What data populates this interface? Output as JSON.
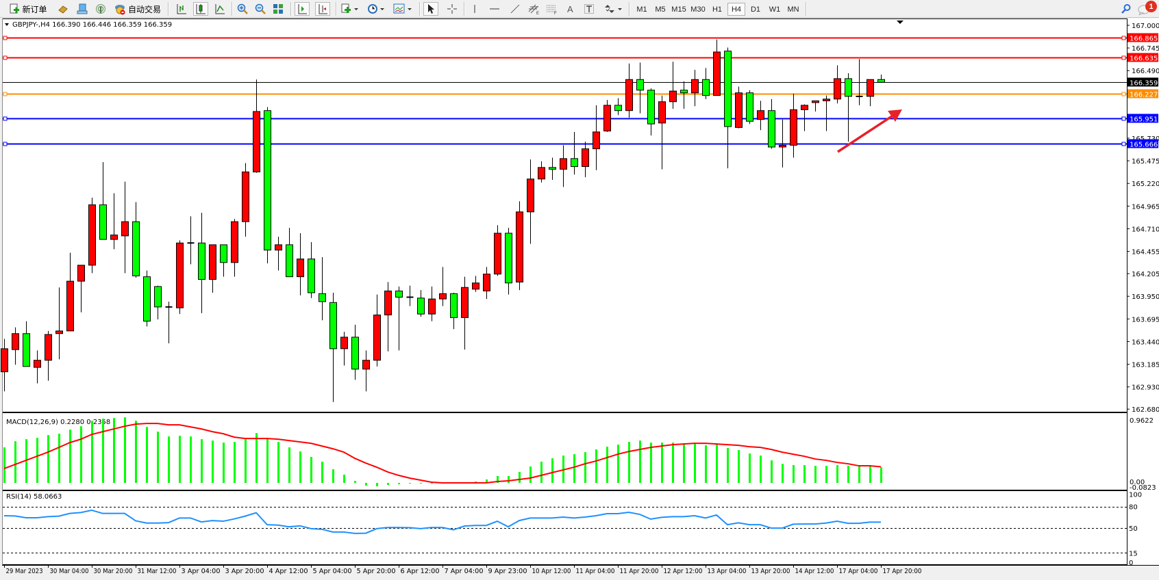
{
  "toolbar": {
    "new_order_label": "新订单",
    "auto_trading_label": "自动交易",
    "timeframes": [
      "M1",
      "M5",
      "M15",
      "M30",
      "H1",
      "H4",
      "D1",
      "W1",
      "MN"
    ],
    "selected_timeframe": "H4",
    "notification_count": "1"
  },
  "chart_header": "GBPJPY-,H4  166.390 166.446 166.359 166.359",
  "macd_label": "MACD(12,26,9) 0.2280 0.2358",
  "rsi_label": "RSI(14) 58.0663",
  "colors": {
    "bull": "#ff0000",
    "bear": "#00ff00",
    "macd_hist": "#00ff00",
    "macd_signal": "#ff0000",
    "rsi": "#1e90ff",
    "bid": "#000000"
  },
  "chart_data": {
    "type": "candlestick",
    "symbol": "GBPJPY-",
    "timeframe": "H4",
    "ylim": [
      162.68,
      167.0
    ],
    "price_ticks": [
      "167.000",
      "166.745",
      "166.490",
      "165.730",
      "165.475",
      "165.220",
      "164.965",
      "164.710",
      "164.455",
      "164.205",
      "163.950",
      "163.695",
      "163.440",
      "163.185",
      "162.930",
      "162.680"
    ],
    "time_labels": [
      "29 Mar 2023",
      "30 Mar 04:00",
      "30 Mar 20:00",
      "31 Mar 12:00",
      "3 Apr 04:00",
      "3 Apr 20:00",
      "4 Apr 12:00",
      "5 Apr 04:00",
      "5 Apr 20:00",
      "6 Apr 12:00",
      "7 Apr 04:00",
      "9 Apr 23:00",
      "10 Apr 12:00",
      "11 Apr 04:00",
      "11 Apr 20:00",
      "12 Apr 12:00",
      "13 Apr 04:00",
      "13 Apr 20:00",
      "14 Apr 12:00",
      "17 Apr 04:00",
      "17 Apr 20:00"
    ],
    "ohlc": [
      [
        163.1,
        163.47,
        162.88,
        163.36
      ],
      [
        163.35,
        163.6,
        163.18,
        163.53
      ],
      [
        163.53,
        163.67,
        163.16,
        163.16
      ],
      [
        163.15,
        163.34,
        162.97,
        163.23
      ],
      [
        163.23,
        163.56,
        163.0,
        163.52
      ],
      [
        163.53,
        164.05,
        163.24,
        163.56
      ],
      [
        163.56,
        164.44,
        163.56,
        164.12
      ],
      [
        164.12,
        164.3,
        163.77,
        164.3
      ],
      [
        164.3,
        165.06,
        164.21,
        164.98
      ],
      [
        164.98,
        165.46,
        164.59,
        164.59
      ],
      [
        164.59,
        165.11,
        164.48,
        164.64
      ],
      [
        164.63,
        165.24,
        164.21,
        164.79
      ],
      [
        164.79,
        165.01,
        164.16,
        164.18
      ],
      [
        164.17,
        164.24,
        163.61,
        163.67
      ],
      [
        164.06,
        164.07,
        163.69,
        163.83
      ],
      [
        163.83,
        163.89,
        163.42,
        163.83
      ],
      [
        163.82,
        164.58,
        163.75,
        164.55
      ],
      [
        164.55,
        164.85,
        164.31,
        164.55
      ],
      [
        164.55,
        164.89,
        163.76,
        164.14
      ],
      [
        164.14,
        164.53,
        163.99,
        164.53
      ],
      [
        164.53,
        164.53,
        164.17,
        164.33
      ],
      [
        164.33,
        164.82,
        164.17,
        164.79
      ],
      [
        164.79,
        165.45,
        164.62,
        165.35
      ],
      [
        165.35,
        166.39,
        165.34,
        166.03
      ],
      [
        166.04,
        166.08,
        164.32,
        164.47
      ],
      [
        164.47,
        164.62,
        164.24,
        164.53
      ],
      [
        164.53,
        164.72,
        164.17,
        164.17
      ],
      [
        164.17,
        164.66,
        163.96,
        164.37
      ],
      [
        164.37,
        164.56,
        163.93,
        163.99
      ],
      [
        163.98,
        164.39,
        163.68,
        163.89
      ],
      [
        163.88,
        163.99,
        162.76,
        163.36
      ],
      [
        163.36,
        163.55,
        163.17,
        163.49
      ],
      [
        163.49,
        163.63,
        163.01,
        163.13
      ],
      [
        163.13,
        163.34,
        162.88,
        163.23
      ],
      [
        163.23,
        163.97,
        163.16,
        163.74
      ],
      [
        163.74,
        164.11,
        163.33,
        164.01
      ],
      [
        164.01,
        164.06,
        163.34,
        163.94
      ],
      [
        163.94,
        164.07,
        163.84,
        163.93
      ],
      [
        163.93,
        164.02,
        163.72,
        163.75
      ],
      [
        163.75,
        164.06,
        163.67,
        163.92
      ],
      [
        163.92,
        164.28,
        163.84,
        163.98
      ],
      [
        163.98,
        163.99,
        163.58,
        163.71
      ],
      [
        163.71,
        164.17,
        163.35,
        164.05
      ],
      [
        164.03,
        164.18,
        164.0,
        164.1
      ],
      [
        164.01,
        164.28,
        163.92,
        164.2
      ],
      [
        164.2,
        164.75,
        164.18,
        164.66
      ],
      [
        164.66,
        164.72,
        163.97,
        164.1
      ],
      [
        164.11,
        165.02,
        164.02,
        164.9
      ],
      [
        164.9,
        165.49,
        164.54,
        165.27
      ],
      [
        165.27,
        165.47,
        165.23,
        165.4
      ],
      [
        165.4,
        165.51,
        165.26,
        165.38
      ],
      [
        165.38,
        165.65,
        165.18,
        165.5
      ],
      [
        165.5,
        165.8,
        165.32,
        165.41
      ],
      [
        165.41,
        165.69,
        165.29,
        165.61
      ],
      [
        165.61,
        166.1,
        165.37,
        165.8
      ],
      [
        165.81,
        166.16,
        165.8,
        166.1
      ],
      [
        166.1,
        166.18,
        165.99,
        166.04
      ],
      [
        166.04,
        166.57,
        165.96,
        166.39
      ],
      [
        166.39,
        166.58,
        166.01,
        166.27
      ],
      [
        166.27,
        166.29,
        165.76,
        165.89
      ],
      [
        165.9,
        166.21,
        165.38,
        166.14
      ],
      [
        166.14,
        166.59,
        166.06,
        166.26
      ],
      [
        166.27,
        166.37,
        166.06,
        166.24
      ],
      [
        166.24,
        166.5,
        166.09,
        166.39
      ],
      [
        166.39,
        166.52,
        166.17,
        166.21
      ],
      [
        166.21,
        166.84,
        166.21,
        166.7
      ],
      [
        166.71,
        166.75,
        165.39,
        165.86
      ],
      [
        165.85,
        166.31,
        165.84,
        166.24
      ],
      [
        166.24,
        166.27,
        165.89,
        165.92
      ],
      [
        165.94,
        166.15,
        165.82,
        166.04
      ],
      [
        166.04,
        166.17,
        165.61,
        165.63
      ],
      [
        165.63,
        165.94,
        165.4,
        165.65
      ],
      [
        165.65,
        166.23,
        165.51,
        166.05
      ],
      [
        166.05,
        166.11,
        165.81,
        166.1
      ],
      [
        166.13,
        166.15,
        166.03,
        166.15
      ],
      [
        166.15,
        166.21,
        165.81,
        166.17
      ],
      [
        166.17,
        166.55,
        166.12,
        166.4
      ],
      [
        166.4,
        166.46,
        165.69,
        166.2
      ],
      [
        166.2,
        166.62,
        166.1,
        166.2
      ],
      [
        166.2,
        166.39,
        166.09,
        166.39
      ],
      [
        166.39,
        166.446,
        166.359,
        166.359
      ]
    ],
    "hlines": [
      {
        "price": "166.865",
        "color": "#ff0000"
      },
      {
        "price": "166.635",
        "color": "#ff0000"
      },
      {
        "price": "166.359",
        "color": "#000000"
      },
      {
        "price": "166.227",
        "color": "#ff8c00"
      },
      {
        "price": "165.951",
        "color": "#0000ff"
      },
      {
        "price": "165.666",
        "color": "#0000ff"
      }
    ],
    "macd": {
      "ylim": [
        -0.0823,
        0.9622
      ],
      "axis_labels": [
        "0.9622",
        "0.00",
        "-0.0823"
      ],
      "histogram": [
        0.52,
        0.61,
        0.64,
        0.66,
        0.7,
        0.72,
        0.78,
        0.83,
        0.91,
        0.94,
        0.95,
        0.96,
        0.91,
        0.82,
        0.75,
        0.68,
        0.69,
        0.68,
        0.64,
        0.62,
        0.59,
        0.6,
        0.64,
        0.73,
        0.66,
        0.6,
        0.52,
        0.46,
        0.38,
        0.31,
        0.2,
        0.12,
        0.03,
        -0.04,
        -0.05,
        -0.03,
        -0.02,
        -0.01,
        -0.01,
        -0.01,
        0.0,
        0.0,
        0.01,
        0.02,
        0.05,
        0.1,
        0.1,
        0.16,
        0.24,
        0.31,
        0.36,
        0.4,
        0.42,
        0.45,
        0.49,
        0.53,
        0.56,
        0.6,
        0.62,
        0.59,
        0.59,
        0.59,
        0.57,
        0.57,
        0.55,
        0.57,
        0.51,
        0.48,
        0.43,
        0.4,
        0.33,
        0.28,
        0.26,
        0.26,
        0.25,
        0.25,
        0.26,
        0.25,
        0.25,
        0.25,
        0.228
      ],
      "signal": [
        0.21,
        0.27,
        0.33,
        0.39,
        0.45,
        0.52,
        0.59,
        0.64,
        0.71,
        0.75,
        0.79,
        0.83,
        0.86,
        0.87,
        0.87,
        0.85,
        0.85,
        0.82,
        0.79,
        0.75,
        0.72,
        0.67,
        0.65,
        0.65,
        0.65,
        0.64,
        0.62,
        0.6,
        0.58,
        0.54,
        0.5,
        0.45,
        0.36,
        0.29,
        0.23,
        0.16,
        0.11,
        0.07,
        0.04,
        0.01,
        0.0,
        0.0,
        0.0,
        0.0,
        0.0,
        0.02,
        0.03,
        0.05,
        0.07,
        0.11,
        0.15,
        0.19,
        0.23,
        0.28,
        0.32,
        0.37,
        0.42,
        0.46,
        0.49,
        0.52,
        0.54,
        0.56,
        0.57,
        0.58,
        0.58,
        0.57,
        0.56,
        0.55,
        0.53,
        0.52,
        0.49,
        0.45,
        0.42,
        0.39,
        0.35,
        0.33,
        0.3,
        0.28,
        0.25,
        0.25,
        0.2358
      ]
    },
    "rsi": {
      "ylim": [
        0,
        100
      ],
      "levels": [
        "80",
        "50",
        "15"
      ],
      "axis_labels": [
        "100",
        "80",
        "50",
        "15",
        "0"
      ],
      "values": [
        67.1,
        66.8,
        64.2,
        64.2,
        65.8,
        66.5,
        70.3,
        71.6,
        74.8,
        70.3,
        70.3,
        70.3,
        60.0,
        56.8,
        56.8,
        57.4,
        63.9,
        63.9,
        58.4,
        60.3,
        59.4,
        62.6,
        66.5,
        71.3,
        54.5,
        53.9,
        51.6,
        52.9,
        49.0,
        48.1,
        44.2,
        44.2,
        42.3,
        42.6,
        49.0,
        50.6,
        50.6,
        50.3,
        49.0,
        50.6,
        50.6,
        47.4,
        52.6,
        53.5,
        53.5,
        59.4,
        51.6,
        60.3,
        63.9,
        63.9,
        63.9,
        65.2,
        63.9,
        65.2,
        67.1,
        70.0,
        70.0,
        71.9,
        69.0,
        62.3,
        64.8,
        65.8,
        65.8,
        67.1,
        63.9,
        68.1,
        54.5,
        57.1,
        54.5,
        54.5,
        49.7,
        49.7,
        55.2,
        55.5,
        55.5,
        56.8,
        59.4,
        56.5,
        56.5,
        58.1,
        58.0663
      ]
    }
  }
}
